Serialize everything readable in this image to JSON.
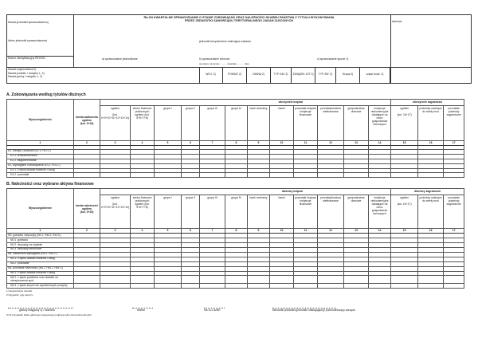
{
  "header": {
    "unit_name_label": "Nazwa jednostki sprawozdawczej",
    "unit_address_label": "Adres jednostki sprawozdawczej",
    "regon_label": "Numer identyfikacyjny REGON",
    "voivodeship_label": "Nazwa województwa 2)",
    "county_label": "Nazwa powiatu / związku 1, 2)",
    "commune_label": "Nazwa gminy / związku 1, 2)",
    "title_line1": "Rb-ZN  KWARTALNE SPRAWOZDANIE O STANIE ZOBOWIĄZAŃ ORAZ NALEŻNOŚCI SKARBU PAŃSTWA Z TYTUŁU WYKONYWANIA",
    "title_line2": "PRZEZ JEDNOSTKI SAMORZĄDU TERYTORIALNEGO ZADAŃ ZLECONYCH",
    "direct_units": "jednostki bezpośrednio realizujące zadania",
    "report_a": "a) sprawozdanie jednostkowe",
    "report_b": "b) sprawozdanie zbiorcze",
    "report_c": "c) sprawozdanie łączne 1)",
    "as_of": "wg stanu na koniec .......... kwartału .......... roku",
    "addressee_label": "Adresat:",
    "codes": [
      "WOJ. 2)",
      "POWIAT 2)",
      "GMINA 2)",
      "TYP GM. 2)",
      "ZWIĄZEK JST 2)",
      "TYP ZW. 2)",
      "Grupa 2)",
      "część budż. 2)"
    ]
  },
  "section_a": {
    "title": "A. Zobowiązania według tytułów dłużnych",
    "group_domestic": "wierzyciele krajowi",
    "group_foreign": "wierzyciele zagraniczni",
    "columns": [
      "Wyszczególnienie",
      "kwota zadłużenia ogółem|(kol. 3+15)",
      "ogółem|(kol. 4+9+10+11+12+13+14)",
      "sektor finansów publicznych ogółem (kol. 5+6+7+8)",
      "grupa I",
      "grupa II",
      "grupa III",
      "grupa IV",
      "bank centralny",
      "banki",
      "pozostałe krajowe instytucje finansowe",
      "przedsiębiorstwa niefinansowe",
      "gospodarstwa domowe",
      "instytucje niekomercyjne działające na rzecz gospodarstw domowych",
      "ogółem|(kol. 16+17)",
      "podmioty należące do strefy euro",
      "pozostałe podmioty zagraniczne"
    ],
    "rows": [
      "",
      "E2. kredyty i pożyczki (E2.1.+E2.2.)",
      "E2.1. krótkoterminowe",
      "E2.2. długoterminowe",
      "E4. wymagalne zobowiązania (E4.1.+E4.2.)",
      "E4.1. z tytułu dostaw towarów i usług",
      "E4.2. pozostałe"
    ]
  },
  "section_b": {
    "title": "B. Należności oraz wybrane aktywa finansowe",
    "group_domestic": "dłużnicy krajowi",
    "group_foreign": "dłużnicy zagraniczni",
    "columns": [
      "Wyszczególnienie",
      "kwota należności ogółem|(kol. 3+15)",
      "ogółem|(kol. 4+9+10+11+12+13+14)",
      "sektor finansów publicznych ogółem (kol. 5+6+7+8)",
      "grupa I",
      "grupa II",
      "grupa III",
      "grupa IV",
      "bank centralny",
      "banki",
      "pozostałe krajowe instytucje finansowe",
      "przedsiębiorstwa niefinansowe",
      "gospodarstwa domowe",
      "instytucje niekomercyjne działające na rzecz gospodarstw domowych",
      "ogółem|(kol. 16+17)",
      "podmioty należące do strefy euro",
      "pozostałe podmioty zagraniczne"
    ],
    "rows": [
      "N0. gotówka i depozyty (N0.1.+N0.2.+N0.3.)",
      "N0.1. gotówka",
      "N0.2. depozyty na żądanie",
      "N0.3. depozyty terminowe",
      "N4. należności wymagalne (N4.1.+N4.2.)",
      "N4.1. z tytułu dostaw towarów i usług",
      "N4.2. pozostałe",
      "N5. pozostałe należności (N5.1.+N5.2.+N5.3.)",
      "N5.1. z tytułu dostaw towarów i usług",
      "N5.2. z tytułu podatków oraz składek na ubezpieczenia społ.",
      "N5.3. z tytułu innych nie wymienionych powyżej"
    ]
  },
  "footnotes": [
    "1) Niepotrzebne skreślić.",
    "2) Wypełnić, gdy dotyczy."
  ],
  "signatures": {
    "accountant": "główny księgowy 3) / skarbnik",
    "phone": "telefon",
    "date": "rok m-c dzień",
    "head": "kierownik jednostki (jednostki obsługującej)/ przewodniczący zarządu",
    "footnote": "3) W przypadku braku głównego księgowego podpisuje tylko kierownik jednostki."
  }
}
